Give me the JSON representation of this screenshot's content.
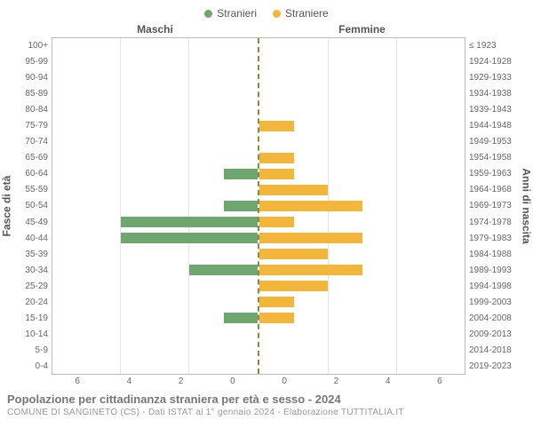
{
  "legend": {
    "male": {
      "label": "Stranieri",
      "color": "#6fa66f"
    },
    "female": {
      "label": "Straniere",
      "color": "#f2b63c"
    }
  },
  "headers": {
    "left": "Maschi",
    "right": "Femmine"
  },
  "axis_left": {
    "label": "Fasce di età"
  },
  "axis_right": {
    "label": "Anni di nascita"
  },
  "xaxis": {
    "max": 6,
    "ticks_left": [
      "6",
      "4",
      "2",
      "0"
    ],
    "ticks_right": [
      "0",
      "2",
      "4",
      "6"
    ]
  },
  "mid_line_color": "#8a8a3a",
  "grid_color": "#e5e5e5",
  "rows": [
    {
      "age": "100+",
      "birth": "≤ 1923",
      "m": 0,
      "f": 0
    },
    {
      "age": "95-99",
      "birth": "1924-1928",
      "m": 0,
      "f": 0
    },
    {
      "age": "90-94",
      "birth": "1929-1933",
      "m": 0,
      "f": 0
    },
    {
      "age": "85-89",
      "birth": "1934-1938",
      "m": 0,
      "f": 0
    },
    {
      "age": "80-84",
      "birth": "1939-1943",
      "m": 0,
      "f": 0
    },
    {
      "age": "75-79",
      "birth": "1944-1948",
      "m": 0,
      "f": 1
    },
    {
      "age": "70-74",
      "birth": "1949-1953",
      "m": 0,
      "f": 0
    },
    {
      "age": "65-69",
      "birth": "1954-1958",
      "m": 0,
      "f": 1
    },
    {
      "age": "60-64",
      "birth": "1959-1963",
      "m": 1,
      "f": 1
    },
    {
      "age": "55-59",
      "birth": "1964-1968",
      "m": 0,
      "f": 2
    },
    {
      "age": "50-54",
      "birth": "1969-1973",
      "m": 1,
      "f": 3
    },
    {
      "age": "45-49",
      "birth": "1974-1978",
      "m": 4,
      "f": 1
    },
    {
      "age": "40-44",
      "birth": "1979-1983",
      "m": 4,
      "f": 3
    },
    {
      "age": "35-39",
      "birth": "1984-1988",
      "m": 0,
      "f": 2
    },
    {
      "age": "30-34",
      "birth": "1989-1993",
      "m": 2,
      "f": 3
    },
    {
      "age": "25-29",
      "birth": "1994-1998",
      "m": 0,
      "f": 2
    },
    {
      "age": "20-24",
      "birth": "1999-2003",
      "m": 0,
      "f": 1
    },
    {
      "age": "15-19",
      "birth": "2004-2008",
      "m": 1,
      "f": 1
    },
    {
      "age": "10-14",
      "birth": "2009-2013",
      "m": 0,
      "f": 0
    },
    {
      "age": "5-9",
      "birth": "2014-2018",
      "m": 0,
      "f": 0
    },
    {
      "age": "0-4",
      "birth": "2019-2023",
      "m": 0,
      "f": 0
    }
  ],
  "footer": {
    "title": "Popolazione per cittadinanza straniera per età e sesso - 2024",
    "sub": "COMUNE DI SANGINETO (CS) - Dati ISTAT al 1° gennaio 2024 - Elaborazione TUTTITALIA.IT"
  }
}
